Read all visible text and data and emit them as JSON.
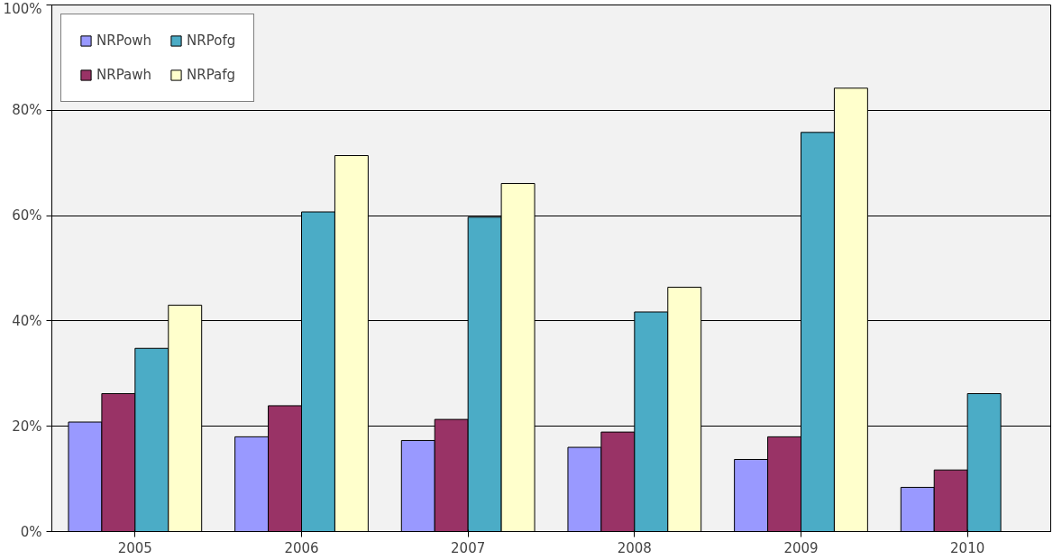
{
  "chart_data": {
    "type": "bar",
    "categories": [
      "2005",
      "2006",
      "2007",
      "2008",
      "2009",
      "2010"
    ],
    "series": [
      {
        "name": "NRPowh",
        "color": "#9999ff",
        "values": [
          20.8,
          18.0,
          17.3,
          16.0,
          13.7,
          8.4
        ]
      },
      {
        "name": "NRPawh",
        "color": "#993366",
        "values": [
          26.2,
          23.9,
          21.3,
          18.9,
          18.0,
          11.7
        ]
      },
      {
        "name": "NRPofg",
        "color": "#4bacc6",
        "values": [
          34.8,
          60.7,
          59.7,
          41.7,
          75.8,
          26.2
        ]
      },
      {
        "name": "NRPafg",
        "color": "#ffffcc",
        "values": [
          43.0,
          71.4,
          66.1,
          46.4,
          84.2,
          null
        ]
      }
    ],
    "ylim": [
      0,
      100
    ],
    "yticks": [
      {
        "value": 0,
        "label": "0%"
      },
      {
        "value": 20,
        "label": "20%"
      },
      {
        "value": 40,
        "label": "40%"
      },
      {
        "value": 60,
        "label": "60%"
      },
      {
        "value": 80,
        "label": "80%"
      },
      {
        "value": 100,
        "label": "100%"
      }
    ],
    "grid": "y",
    "legend": "top left"
  }
}
